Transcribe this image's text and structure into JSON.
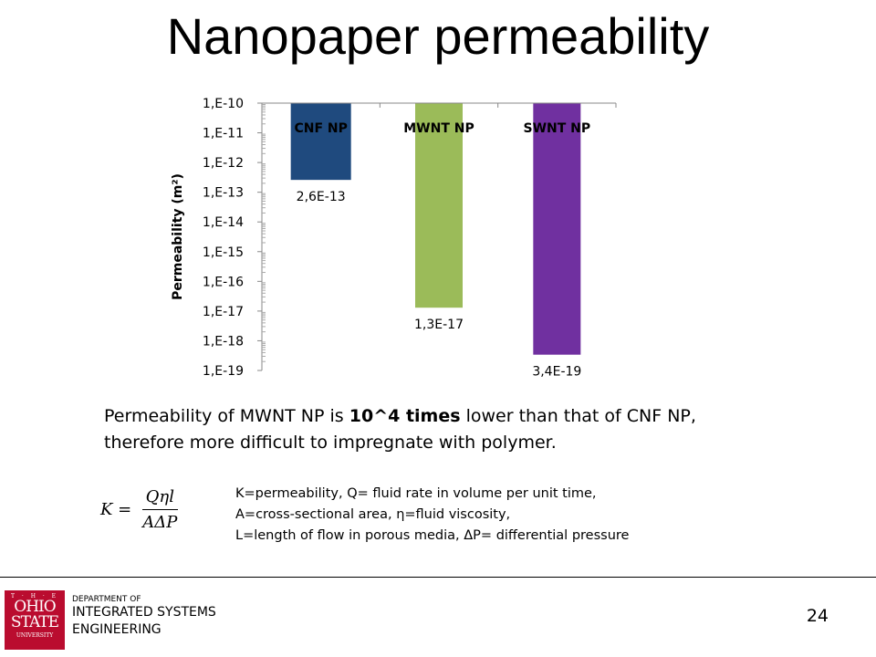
{
  "title": "Nanopaper permeability",
  "chart_data": {
    "type": "bar",
    "categories": [
      "CNF NP",
      "MWNT NP",
      "SWNT NP"
    ],
    "values": [
      2.6e-13,
      1.3e-17,
      3.4e-19
    ],
    "value_labels": [
      "2,6E-13",
      "1,3E-17",
      "3,4E-19"
    ],
    "colors": [
      "#1f4a7e",
      "#9bbb59",
      "#7030a0"
    ],
    "ylabel": "Permeability (m²)",
    "yscale": "log",
    "ylim": [
      1e-19,
      1e-10
    ],
    "ytick_labels": [
      "1,E-10",
      "1,E-11",
      "1,E-12",
      "1,E-13",
      "1,E-14",
      "1,E-15",
      "1,E-16",
      "1,E-17",
      "1,E-18",
      "1,E-19"
    ],
    "xaxis_at_top": true
  },
  "paragraph": {
    "part1": "Permeability of MWNT NP is ",
    "bold": "10^4 times",
    "part2": " lower than that of CNF NP, therefore more difficult to impregnate with polymer."
  },
  "formula": {
    "lhs": "K =",
    "numerator": "Qηl",
    "denominator": "AΔP"
  },
  "definitions": [
    "K=permeability,  Q= fluid rate in volume per unit time,",
    "A=cross-sectional  area,  η=fluid viscosity,",
    "L=length of flow in porous media, ΔP= differential  pressure"
  ],
  "footer": {
    "logo_text": "THE OHIO STATE UNIVERSITY",
    "logo_the": "T · H · E",
    "logo_line1": "OHIO",
    "logo_line2": "STATE",
    "logo_line3": "UNIVERSITY",
    "dept_small": "DEPARTMENT OF",
    "dept_line1": "INTEGRATED SYSTEMS",
    "dept_line2": "ENGINEERING",
    "page_number": "24"
  }
}
